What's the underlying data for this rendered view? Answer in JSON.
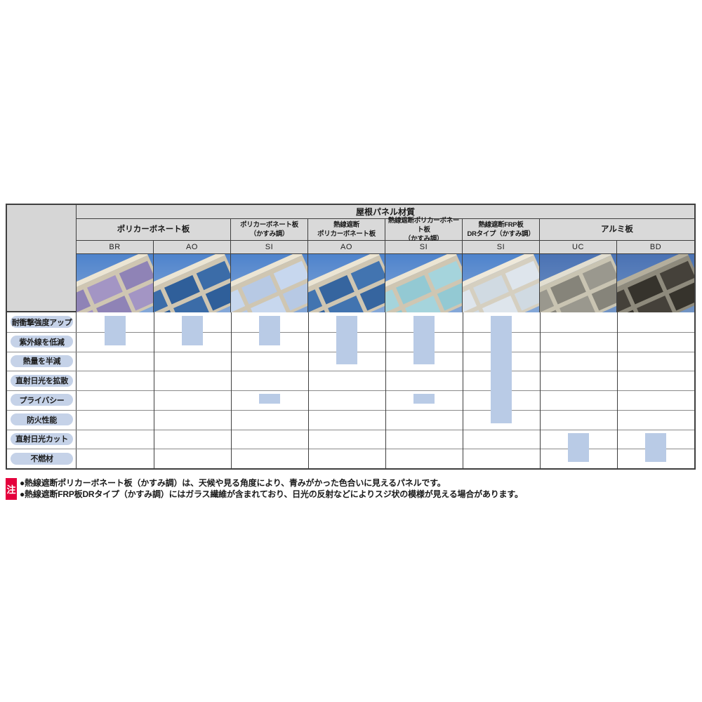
{
  "table": {
    "title": "屋根パネル材質",
    "groups": [
      {
        "label": "ポリカーボネート板",
        "span": 2
      },
      {
        "label": "ポリカーボネート板\n（かすみ調）",
        "span": 1
      },
      {
        "label": "熱線遮断\nポリカーボネート板",
        "span": 1
      },
      {
        "label": "熱線遮断ポリカーボネート板\n（かすみ調）",
        "span": 1
      },
      {
        "label": "熱線遮断FRP板\nDRタイプ（かすみ調）",
        "span": 1
      },
      {
        "label": "アルミ板",
        "span": 2
      }
    ],
    "columns": [
      {
        "code": "BR",
        "sky": [
          "#4e83cc",
          "#85a8d8"
        ],
        "frame": "#cfc6b2",
        "frame_light": "#ece5d3",
        "panel1": "#8f83b6",
        "panel2": "#a395c4"
      },
      {
        "code": "AO",
        "sky": [
          "#4e83cc",
          "#85a8d8"
        ],
        "frame": "#cfc6b2",
        "frame_light": "#ece5d3",
        "panel1": "#3b6ca8",
        "panel2": "#2f5f9a"
      },
      {
        "code": "SI",
        "sky": [
          "#4e83cc",
          "#85a8d8"
        ],
        "frame": "#cfc6b2",
        "frame_light": "#ece5d3",
        "panel1": "#c7d7ee",
        "panel2": "#b7c9e4"
      },
      {
        "code": "AO",
        "sky": [
          "#4e83cc",
          "#85a8d8"
        ],
        "frame": "#cfc6b2",
        "frame_light": "#ece5d3",
        "panel1": "#4274b0",
        "panel2": "#36659f"
      },
      {
        "code": "SI",
        "sky": [
          "#4e83cc",
          "#85a8d8"
        ],
        "frame": "#cfc6b2",
        "frame_light": "#ece5d3",
        "panel1": "#a5d4dc",
        "panel2": "#93c9d3"
      },
      {
        "code": "SI",
        "sky": [
          "#4e83cc",
          "#85a8d8"
        ],
        "frame": "#d5cfc0",
        "frame_light": "#efe9da",
        "panel1": "#dee5ec",
        "panel2": "#d0dae2"
      },
      {
        "code": "UC",
        "sky": [
          "#4a72b4",
          "#7294c4"
        ],
        "frame": "#c9c4b2",
        "frame_light": "#e2ded0",
        "panel1": "#9a988e",
        "panel2": "#86847a"
      },
      {
        "code": "BD",
        "sky": [
          "#4a72b4",
          "#7294c4"
        ],
        "frame": "#8e8a7c",
        "frame_light": "#b4ae9c",
        "panel1": "#45413a",
        "panel2": "#36332c"
      }
    ],
    "rows": [
      "耐衝撃強度アップ",
      "紫外線を低減",
      "熱量を半減",
      "直射日光を拡散",
      "プライバシー",
      "防火性能",
      "直射日光カット",
      "不燃材"
    ],
    "marks": [
      {
        "col": 0,
        "from": 1,
        "to": 2
      },
      {
        "col": 1,
        "from": 1,
        "to": 2
      },
      {
        "col": 2,
        "from": 1,
        "to": 2
      },
      {
        "col": 2,
        "from": 5,
        "to": 5
      },
      {
        "col": 3,
        "from": 1,
        "to": 3
      },
      {
        "col": 4,
        "from": 1,
        "to": 3
      },
      {
        "col": 4,
        "from": 5,
        "to": 5
      },
      {
        "col": 5,
        "from": 1,
        "to": 6
      },
      {
        "col": 6,
        "from": 7,
        "to": 8
      },
      {
        "col": 7,
        "from": 7,
        "to": 8
      }
    ],
    "mark_color": "#b9cbe6",
    "header_bg": "#d9d9d9",
    "pill_bg": "#c5d2e8"
  },
  "notes": {
    "badge": "注",
    "badge_color": "#e4003c",
    "items": [
      "●熱線遮断ポリカーボネート板（かすみ調）は、天候や見る角度により、青みがかった色合いに見えるパネルです。",
      "●熱線遮断FRP板DRタイプ（かすみ調）にはガラス繊維が含まれており、日光の反射などによりスジ状の模様が見える場合があります。"
    ]
  }
}
